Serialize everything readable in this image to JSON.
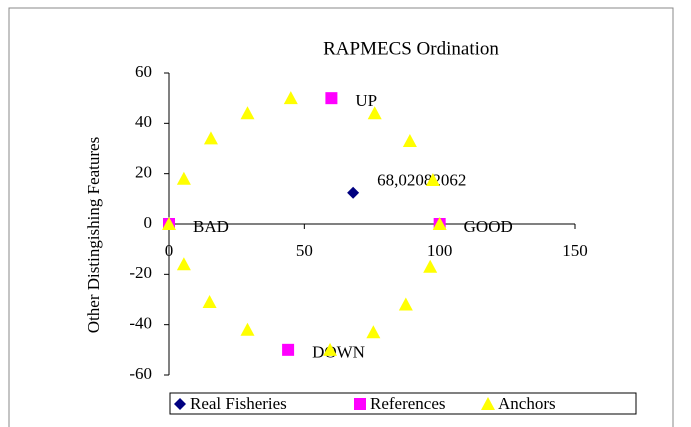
{
  "chart_data": {
    "type": "scatter",
    "title": "RAPMECS  Ordination",
    "y_label": "Other Distingishing Features",
    "xlim": [
      0,
      150
    ],
    "xticks": [
      0,
      50,
      100,
      150
    ],
    "ylim": [
      -60,
      60
    ],
    "yticks": [
      -60,
      -40,
      -20,
      0,
      20,
      40,
      60
    ],
    "legend": "bottom",
    "grid": false,
    "series": [
      {
        "name": "Real Fisheries",
        "color": "#000080",
        "marker": "diamond",
        "x": [
          68.02082062
        ],
        "values": [
          12.4
        ],
        "value_labels": [
          "68,02082062"
        ]
      },
      {
        "name": "References",
        "color": "#ff00ff",
        "marker": "square",
        "x": [
          0,
          100,
          60,
          44
        ],
        "values": [
          0,
          0,
          50,
          -50
        ],
        "labels": [
          "BAD",
          "GOOD",
          "UP",
          "DOWN"
        ]
      },
      {
        "name": "Anchors",
        "color": "#ffff00",
        "marker": "triangle",
        "x": [
          45,
          76,
          29,
          15.5,
          89,
          5.5,
          97.5,
          100,
          0,
          5.5,
          96.5,
          15,
          87.5,
          29,
          75.5,
          59.5
        ],
        "values": [
          50,
          44,
          44,
          34,
          33,
          18,
          17.5,
          0,
          0,
          -16,
          -17,
          -31,
          -32,
          -42,
          -43,
          -50
        ]
      }
    ]
  }
}
